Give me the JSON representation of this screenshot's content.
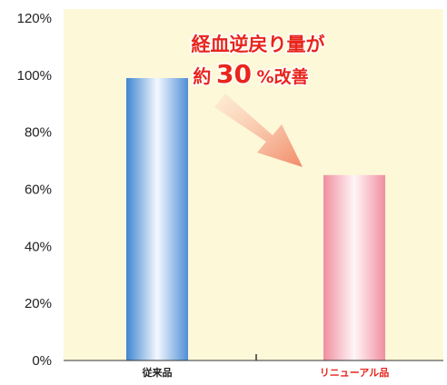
{
  "chart_data": {
    "type": "bar",
    "categories": [
      "従来品",
      "リニューアル品"
    ],
    "values": [
      99,
      65
    ],
    "ylim": [
      0,
      120
    ],
    "yticks": [
      "0%",
      "20%",
      "40%",
      "60%",
      "80%",
      "100%",
      "120%"
    ],
    "annotation": {
      "line1": "経血逆戻り量が",
      "line2_prefix": "約",
      "line2_number": "30",
      "line2_suffix": "%改善"
    },
    "grid": false,
    "colors": {
      "plot_background": "#fdf8d8",
      "bar_old": "#5b9bd8",
      "bar_new": "#f4a6b3",
      "annotation": "#e8251c",
      "label_new": "#e8251c",
      "label_old": "#222222",
      "arrow": "#f4a07a"
    }
  }
}
